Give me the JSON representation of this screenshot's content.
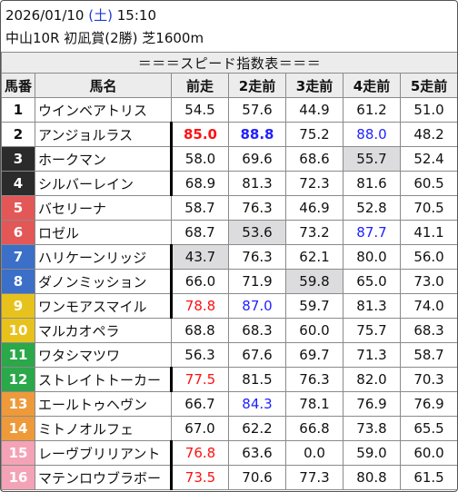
{
  "header": {
    "date": "2026/01/10",
    "dow_open": "(",
    "dow": "土",
    "dow_close": ")",
    "time": "15:10",
    "race": "中山10R 初凪賞(2勝) 芝1600m"
  },
  "table": {
    "title": "＝＝＝スピード指数表＝＝＝",
    "columns": [
      "馬番",
      "馬名",
      "前走",
      "2走前",
      "3走前",
      "4走前",
      "5走前"
    ],
    "rows": [
      {
        "num": "1",
        "name": "ウインベアトリス",
        "v": [
          "54.5",
          "57.6",
          "44.9",
          "61.2",
          "51.0"
        ],
        "sep": false,
        "hl": [
          false,
          false,
          false,
          false,
          false
        ],
        "style": [
          "",
          "",
          "",
          "",
          ""
        ]
      },
      {
        "num": "2",
        "name": "アンジョルラス",
        "v": [
          "85.0",
          "88.8",
          "75.2",
          "88.0",
          "48.2"
        ],
        "sep": true,
        "hl": [
          false,
          false,
          false,
          false,
          false
        ],
        "style": [
          "red bold",
          "blue bold",
          "",
          "blue",
          ""
        ]
      },
      {
        "num": "3",
        "name": "ホークマン",
        "v": [
          "58.0",
          "69.6",
          "68.6",
          "55.7",
          "52.4"
        ],
        "sep": true,
        "hl": [
          false,
          false,
          false,
          true,
          false
        ],
        "style": [
          "",
          "",
          "",
          "",
          ""
        ]
      },
      {
        "num": "4",
        "name": "シルバーレイン",
        "v": [
          "68.9",
          "81.3",
          "72.3",
          "81.6",
          "60.5"
        ],
        "sep": true,
        "hl": [
          false,
          false,
          false,
          false,
          false
        ],
        "style": [
          "",
          "",
          "",
          "",
          ""
        ]
      },
      {
        "num": "5",
        "name": "バセリーナ",
        "v": [
          "58.7",
          "76.3",
          "46.9",
          "52.8",
          "70.5"
        ],
        "sep": false,
        "hl": [
          false,
          false,
          false,
          false,
          false
        ],
        "style": [
          "",
          "",
          "",
          "",
          ""
        ]
      },
      {
        "num": "6",
        "name": "ロゼル",
        "v": [
          "68.7",
          "53.6",
          "73.2",
          "87.7",
          "41.1"
        ],
        "sep": false,
        "hl": [
          false,
          true,
          false,
          false,
          false
        ],
        "style": [
          "",
          "",
          "",
          "blue",
          ""
        ]
      },
      {
        "num": "7",
        "name": "ハリケーンリッジ",
        "v": [
          "43.7",
          "76.3",
          "62.1",
          "80.0",
          "56.0"
        ],
        "sep": true,
        "hl": [
          true,
          false,
          false,
          false,
          false
        ],
        "style": [
          "",
          "",
          "",
          "",
          ""
        ]
      },
      {
        "num": "8",
        "name": "ダノンミッション",
        "v": [
          "66.0",
          "71.9",
          "59.8",
          "65.0",
          "73.0"
        ],
        "sep": true,
        "hl": [
          false,
          false,
          true,
          false,
          false
        ],
        "style": [
          "",
          "",
          "",
          "",
          ""
        ]
      },
      {
        "num": "9",
        "name": "ワンモアスマイル",
        "v": [
          "78.8",
          "87.0",
          "59.7",
          "81.3",
          "74.0"
        ],
        "sep": true,
        "hl": [
          false,
          false,
          false,
          false,
          false
        ],
        "style": [
          "red",
          "blue",
          "",
          "",
          ""
        ]
      },
      {
        "num": "10",
        "name": "マルカオペラ",
        "v": [
          "68.8",
          "68.3",
          "60.0",
          "75.7",
          "68.3"
        ],
        "sep": false,
        "hl": [
          false,
          false,
          false,
          false,
          false
        ],
        "style": [
          "",
          "",
          "",
          "",
          ""
        ]
      },
      {
        "num": "11",
        "name": "ワタシマツワ",
        "v": [
          "56.3",
          "67.6",
          "69.7",
          "71.3",
          "58.7"
        ],
        "sep": false,
        "hl": [
          false,
          false,
          false,
          false,
          false
        ],
        "style": [
          "",
          "",
          "",
          "",
          ""
        ]
      },
      {
        "num": "12",
        "name": "ストレイトトーカー",
        "v": [
          "77.5",
          "81.5",
          "76.3",
          "82.0",
          "70.3"
        ],
        "sep": true,
        "hl": [
          false,
          false,
          false,
          false,
          false
        ],
        "style": [
          "red",
          "",
          "",
          "",
          ""
        ]
      },
      {
        "num": "13",
        "name": "エールトゥヘヴン",
        "v": [
          "66.7",
          "84.3",
          "78.1",
          "76.9",
          "76.9"
        ],
        "sep": false,
        "hl": [
          false,
          false,
          false,
          false,
          false
        ],
        "style": [
          "",
          "blue",
          "",
          "",
          ""
        ]
      },
      {
        "num": "14",
        "name": "ミトノオルフェ",
        "v": [
          "67.0",
          "62.2",
          "66.8",
          "73.8",
          "65.5"
        ],
        "sep": false,
        "hl": [
          false,
          false,
          false,
          false,
          false
        ],
        "style": [
          "",
          "",
          "",
          "",
          ""
        ]
      },
      {
        "num": "15",
        "name": "レーヴブリリアント",
        "v": [
          "76.8",
          "63.6",
          "0.0",
          "59.0",
          "60.0"
        ],
        "sep": true,
        "hl": [
          false,
          false,
          false,
          false,
          false
        ],
        "style": [
          "red",
          "",
          "",
          "",
          ""
        ]
      },
      {
        "num": "16",
        "name": "マテンロウブラボー",
        "v": [
          "73.5",
          "70.6",
          "77.3",
          "80.8",
          "61.5"
        ],
        "sep": true,
        "hl": [
          false,
          false,
          false,
          false,
          false
        ],
        "style": [
          "red",
          "",
          "",
          "",
          ""
        ]
      }
    ]
  },
  "colors": {
    "highlight_cell": "#dcdcdf",
    "top_value_red": "#ff1111",
    "second_value_blue": "#1f1fff",
    "header_bg": "#ececec"
  }
}
